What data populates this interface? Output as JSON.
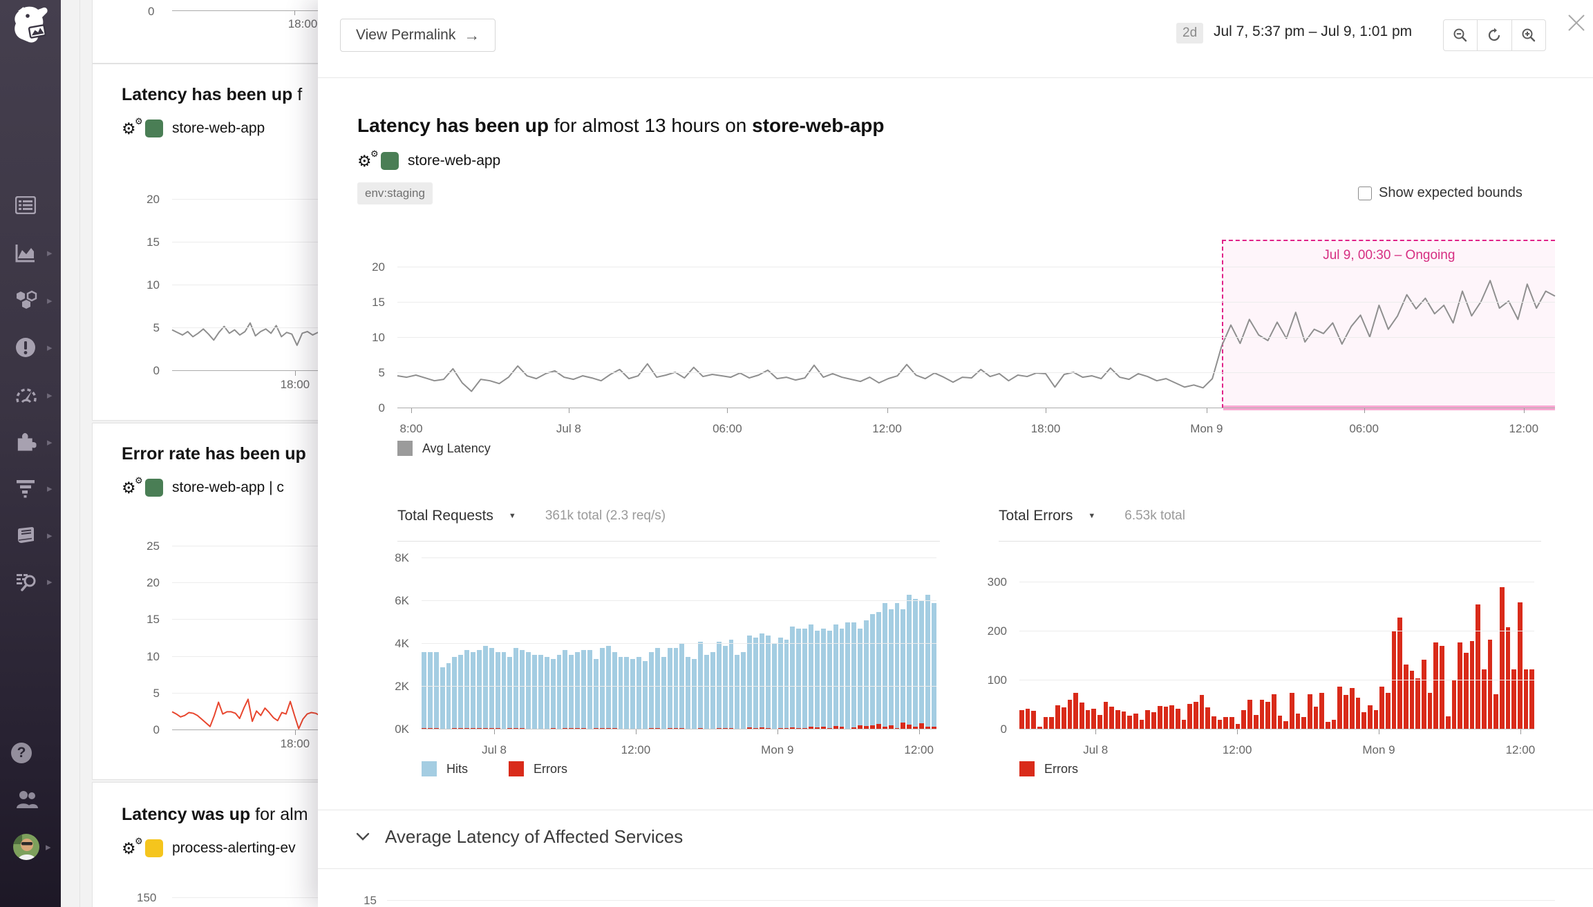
{
  "colors": {
    "accent_green": "#4a7e55",
    "accent_yellow": "#f5c51d",
    "hits_blue": "#a4cde2",
    "error_red": "#d92b1a",
    "anomaly_pink": "#d62e82",
    "anomaly_bar": "#f8a8d2",
    "gray_line": "#8f8f8f",
    "bg_red_line": "#e8462e"
  },
  "sidebar": {
    "items": [
      {
        "name": "dashboards"
      },
      {
        "name": "metrics",
        "caret": true
      },
      {
        "name": "infrastructure",
        "caret": true
      },
      {
        "name": "monitors",
        "caret": true
      },
      {
        "name": "apm",
        "caret": true
      },
      {
        "name": "integrations",
        "caret": true
      },
      {
        "name": "pipelines",
        "caret": true
      },
      {
        "name": "notebooks",
        "caret": true
      },
      {
        "name": "logs",
        "caret": true
      },
      {
        "name": "help"
      },
      {
        "name": "org"
      },
      {
        "name": "avatar",
        "caret": true
      }
    ]
  },
  "background": {
    "card_top": {
      "y_label": "0",
      "x_label": "18:00"
    },
    "card_latency": {
      "title_bold": "Latency has been up",
      "title_rest": " f",
      "monitor": "store-web-app",
      "x_label": "18:00"
    },
    "card_error": {
      "title_bold": "Error rate has been up",
      "monitor": "store-web-app  |  c",
      "x_label": "18:00"
    },
    "card_latency2": {
      "title_bold": "Latency was up",
      "title_rest": " for alm",
      "monitor": "process-alerting-ev",
      "y_label": "150"
    }
  },
  "modal": {
    "permalink_label": "View Permalink",
    "permalink_arrow": "→",
    "range_badge": "2d",
    "range_text": "Jul 7, 5:37 pm – Jul 9, 1:01 pm",
    "title": {
      "bold1": "Latency has been up",
      "mid": " for almost 13 hours on ",
      "bold2": "store-web-app"
    },
    "monitor_label": "store-web-app",
    "tag": "env:staging",
    "bounds_label": "Show expected bounds",
    "legend_avg": "Avg Latency",
    "requests": {
      "title": "Total Requests",
      "caret": "▼",
      "summary": "361k total (2.3 req/s)",
      "legend_hits": "Hits",
      "legend_errors": "Errors"
    },
    "errors": {
      "title": "Total Errors",
      "caret": "▼",
      "summary": "6.53k total",
      "legend_errors": "Errors"
    },
    "section_title": "Average Latency of Affected Services",
    "partial_tick": "15"
  },
  "chart_data": [
    {
      "type": "line",
      "name": "avg-latency-main",
      "legend": "Avg Latency",
      "ylim": [
        0,
        23.9
      ],
      "grid": true,
      "y_ticks": [
        {
          "label": "20",
          "v": 20
        },
        {
          "label": "15",
          "v": 15
        },
        {
          "label": "10",
          "v": 10
        },
        {
          "label": "5",
          "v": 5
        },
        {
          "label": "0",
          "v": 0
        }
      ],
      "x_ticks": [
        {
          "label": "8:00",
          "pct": 1.2
        },
        {
          "label": "Jul 8",
          "pct": 14.8
        },
        {
          "label": "06:00",
          "pct": 28.5
        },
        {
          "label": "12:00",
          "pct": 42.3
        },
        {
          "label": "18:00",
          "pct": 56.0
        },
        {
          "label": "Mon 9",
          "pct": 69.9
        },
        {
          "label": "06:00",
          "pct": 83.5
        },
        {
          "label": "12:00",
          "pct": 97.3
        }
      ],
      "anomaly": {
        "label": "Jul 9, 00:30 – Ongoing",
        "start_label": "Jul 9, 00:30",
        "status": "Ongoing"
      },
      "series": [
        {
          "name": "Avg Latency",
          "color": "#8f8f8f",
          "values_pre_anomaly": [
            4.6,
            4.4,
            4.7,
            4.3,
            3.9,
            4.1,
            5.6,
            3.6,
            2.4,
            4.1,
            3.9,
            3.5,
            4.4,
            6.0,
            4.6,
            4.2,
            4.9,
            5.3,
            4.4,
            4.1,
            4.6,
            4.3,
            3.9,
            4.8,
            5.5,
            4.2,
            4.6,
            6.3,
            4.4,
            4.7,
            5.1,
            4.3,
            5.8,
            4.5,
            4.8,
            4.6,
            4.4,
            5.0,
            4.3,
            4.7,
            5.4,
            4.2,
            4.4,
            4.0,
            4.3,
            6.1,
            4.4,
            4.9,
            4.4,
            4.1,
            3.8,
            4.4,
            3.6,
            4.2,
            4.6,
            6.2,
            4.7,
            4.2,
            5.0,
            4.4,
            3.7,
            4.4,
            4.3,
            5.5,
            4.5,
            4.9,
            3.9,
            4.7,
            4.5,
            5.0,
            4.9,
            3.0,
            4.8,
            5.1,
            4.4,
            4.6,
            4.2,
            5.7,
            4.4,
            4.1,
            4.9,
            4.5,
            3.9,
            4.2,
            3.6,
            3.0,
            3.3,
            2.9,
            4.2
          ],
          "values_anomaly": [
            8.8,
            11.8,
            9.2,
            12.6,
            10.4,
            9.6,
            12.2,
            9.9,
            13.6,
            9.4,
            11.2,
            10.6,
            12.1,
            9.1,
            11.6,
            13.2,
            10.1,
            14.6,
            11.2,
            13.1,
            16.1,
            14.1,
            15.6,
            13.4,
            14.6,
            12.1,
            16.6,
            13.1,
            15.1,
            18.1,
            14.2,
            15.2,
            12.6,
            17.6,
            14.2,
            16.6,
            15.9
          ]
        }
      ]
    },
    {
      "type": "bar",
      "title": "Total Requests",
      "summary": "361k total (2.3 req/s)",
      "ylim": [
        0,
        8.58
      ],
      "y_ticks": [
        {
          "label": "8K",
          "v": 8
        },
        {
          "label": "6K",
          "v": 6
        },
        {
          "label": "4K",
          "v": 4
        },
        {
          "label": "2K",
          "v": 2
        },
        {
          "label": "0K",
          "v": 0
        }
      ],
      "x_ticks": [
        {
          "label": "Jul 8",
          "pct": 14.1
        },
        {
          "label": "12:00",
          "pct": 41.6
        },
        {
          "label": "Mon 9",
          "pct": 69.1
        },
        {
          "label": "12:00",
          "pct": 96.6
        }
      ],
      "series": [
        {
          "name": "Hits",
          "color": "#a4cde2",
          "values": [
            3.6,
            3.6,
            3.6,
            2.9,
            3.1,
            3.4,
            3.5,
            3.7,
            3.6,
            3.7,
            3.9,
            3.8,
            3.6,
            3.6,
            3.4,
            3.8,
            3.7,
            3.6,
            3.5,
            3.5,
            3.4,
            3.3,
            3.5,
            3.7,
            3.5,
            3.6,
            3.7,
            3.7,
            3.3,
            3.8,
            3.9,
            3.6,
            3.4,
            3.4,
            3.3,
            3.4,
            3.2,
            3.6,
            3.8,
            3.4,
            3.8,
            3.8,
            4.0,
            3.4,
            3.3,
            4.1,
            3.5,
            3.6,
            4.1,
            3.9,
            4.2,
            3.5,
            3.6,
            4.4,
            4.3,
            4.5,
            4.4,
            4.0,
            4.3,
            4.2,
            4.8,
            4.7,
            4.7,
            4.9,
            4.6,
            4.7,
            4.6,
            4.9,
            4.7,
            5.0,
            5.0,
            4.7,
            5.1,
            5.4,
            5.5,
            5.9,
            5.6,
            5.9,
            5.6,
            6.3,
            6.1,
            6.0,
            6.3,
            5.9
          ]
        },
        {
          "name": "Errors",
          "color": "#d92b1a",
          "values": [
            0.05,
            0.06,
            0.05,
            0.02,
            0.04,
            0.05,
            0.06,
            0.06,
            0.07,
            0.08,
            0.06,
            0.05,
            0.05,
            0.04,
            0.06,
            0.05,
            0.05,
            0.04,
            0.03,
            0.04,
            0.03,
            0.05,
            0.04,
            0.05,
            0.05,
            0.06,
            0.05,
            0.03,
            0.06,
            0.06,
            0.08,
            0.05,
            0.03,
            0.03,
            0.03,
            0.03,
            0.02,
            0.05,
            0.07,
            0.04,
            0.07,
            0.06,
            0.08,
            0.03,
            0.02,
            0.08,
            0.04,
            0.03,
            0.08,
            0.05,
            0.08,
            0.02,
            0.03,
            0.1,
            0.08,
            0.09,
            0.07,
            0.04,
            0.06,
            0.05,
            0.1,
            0.08,
            0.08,
            0.12,
            0.1,
            0.12,
            0.08,
            0.15,
            0.13,
            0.03,
            0.11,
            0.19,
            0.17,
            0.19,
            0.27,
            0.13,
            0.19,
            0.08,
            0.31,
            0.22,
            0.13,
            0.28,
            0.13,
            0.13
          ]
        }
      ]
    },
    {
      "type": "bar",
      "title": "Total Errors",
      "summary": "6.53k total",
      "ylim": [
        0,
        375
      ],
      "y_ticks": [
        {
          "label": "300",
          "v": 300
        },
        {
          "label": "200",
          "v": 200
        },
        {
          "label": "100",
          "v": 100
        },
        {
          "label": "0",
          "v": 0
        }
      ],
      "x_ticks": [
        {
          "label": "Jul 8",
          "pct": 14.8
        },
        {
          "label": "12:00",
          "pct": 42.3
        },
        {
          "label": "Mon 9",
          "pct": 69.8
        },
        {
          "label": "12:00",
          "pct": 97.3
        }
      ],
      "series": [
        {
          "name": "Errors",
          "color": "#d92b1a",
          "values": [
            40,
            42,
            38,
            5,
            25,
            25,
            50,
            45,
            60,
            75,
            55,
            40,
            42,
            30,
            57,
            47,
            40,
            37,
            28,
            32,
            20,
            40,
            35,
            48,
            47,
            50,
            43,
            20,
            52,
            57,
            70,
            45,
            27,
            20,
            25,
            25,
            12,
            40,
            60,
            30,
            60,
            57,
            72,
            28,
            17,
            75,
            33,
            25,
            72,
            47,
            75,
            15,
            20,
            87,
            70,
            85,
            65,
            35,
            50,
            40,
            87,
            75,
            200,
            228,
            133,
            120,
            105,
            143,
            75,
            178,
            170,
            27,
            100,
            177,
            157,
            180,
            255,
            123,
            183,
            72,
            290,
            209,
            123,
            260,
            123,
            123
          ]
        }
      ]
    },
    {
      "type": "line",
      "name": "bg-latency-card",
      "ylim": [
        0,
        22.1
      ],
      "y_ticks": [
        {
          "label": "20",
          "v": 20
        },
        {
          "label": "15",
          "v": 15
        },
        {
          "label": "10",
          "v": 10
        },
        {
          "label": "5",
          "v": 5
        },
        {
          "label": "0",
          "v": 0
        }
      ],
      "x_ticks": [
        {
          "label": "18:00",
          "pct": 78.7
        }
      ],
      "series": [
        {
          "name": "Avg Latency",
          "color": "#8f8f8f",
          "values": [
            4.8,
            4.5,
            4.2,
            4.6,
            4.0,
            4.4,
            4.9,
            4.3,
            3.6,
            4.5,
            5.2,
            4.4,
            4.8,
            4.2,
            4.6,
            5.6,
            4.1,
            4.6,
            4.9,
            4.4,
            5.3,
            4.0,
            4.5,
            4.3,
            3.0,
            4.4,
            4.6,
            4.2,
            4.5,
            4.4,
            4.3
          ]
        }
      ]
    },
    {
      "type": "line",
      "name": "bg-error-rate-card",
      "ylim": [
        0,
        26.7
      ],
      "y_ticks": [
        {
          "label": "25",
          "v": 25
        },
        {
          "label": "20",
          "v": 20
        },
        {
          "label": "15",
          "v": 15
        },
        {
          "label": "10",
          "v": 10
        },
        {
          "label": "5",
          "v": 5
        },
        {
          "label": "0",
          "v": 0
        }
      ],
      "x_ticks": [
        {
          "label": "18:00",
          "pct": 78.7
        }
      ],
      "series": [
        {
          "name": "Error rate",
          "color": "#e8462e",
          "values": [
            2.5,
            2.2,
            1.8,
            2.0,
            2.4,
            2.3,
            2.0,
            1.5,
            1.0,
            0.5,
            2.0,
            3.8,
            2.2,
            2.5,
            2.5,
            2.3,
            1.6,
            3.0,
            4.2,
            1.2,
            2.6,
            2.0,
            3.0,
            2.4,
            1.7,
            1.3,
            2.4,
            2.2,
            3.9,
            2.0,
            0.2,
            1.5,
            2.2,
            2.4,
            2.3,
            2.0,
            2.5,
            2.2
          ]
        }
      ]
    }
  ]
}
